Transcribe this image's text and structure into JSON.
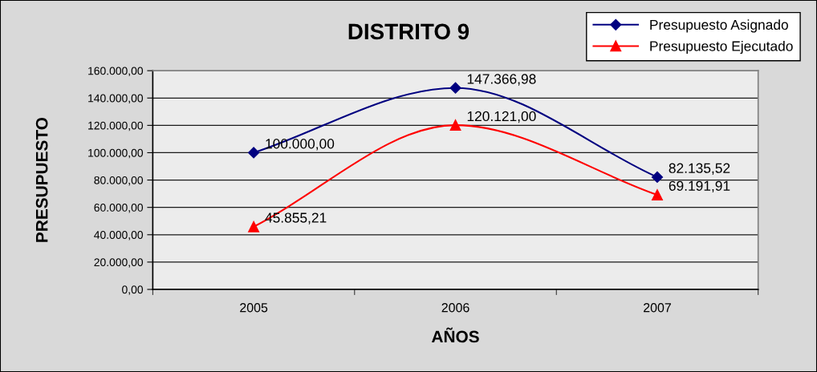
{
  "chart_data": {
    "type": "line",
    "title": "DISTRITO 9",
    "xlabel": "AÑOS",
    "ylabel": "PRESUPUESTO",
    "categories": [
      "2005",
      "2006",
      "2007"
    ],
    "series": [
      {
        "name": "Presupuesto Asignado",
        "color": "#000080",
        "marker": "diamond",
        "values": [
          100000.0,
          147366.98,
          82135.52
        ],
        "value_labels": [
          "100.000,00",
          "147.366,98",
          "82.135,52"
        ]
      },
      {
        "name": "Presupuesto Ejecutado",
        "color": "#ff0000",
        "marker": "triangle",
        "values": [
          45855.21,
          120121.0,
          69191.91
        ],
        "value_labels": [
          "45.855,21",
          "120.121,00",
          "69.191,91"
        ]
      }
    ],
    "ylim": [
      0,
      160000
    ],
    "yticks": [
      {
        "value": 0,
        "label": "0,00"
      },
      {
        "value": 20000,
        "label": "20.000,00"
      },
      {
        "value": 40000,
        "label": "40.000,00"
      },
      {
        "value": 60000,
        "label": "60.000,00"
      },
      {
        "value": 80000,
        "label": "80.000,00"
      },
      {
        "value": 100000,
        "label": "100.000,00"
      },
      {
        "value": 120000,
        "label": "120.000,00"
      },
      {
        "value": 140000,
        "label": "140.000,00"
      },
      {
        "value": 160000,
        "label": "160.000,00"
      }
    ],
    "grid": "y",
    "legend": "top right"
  }
}
